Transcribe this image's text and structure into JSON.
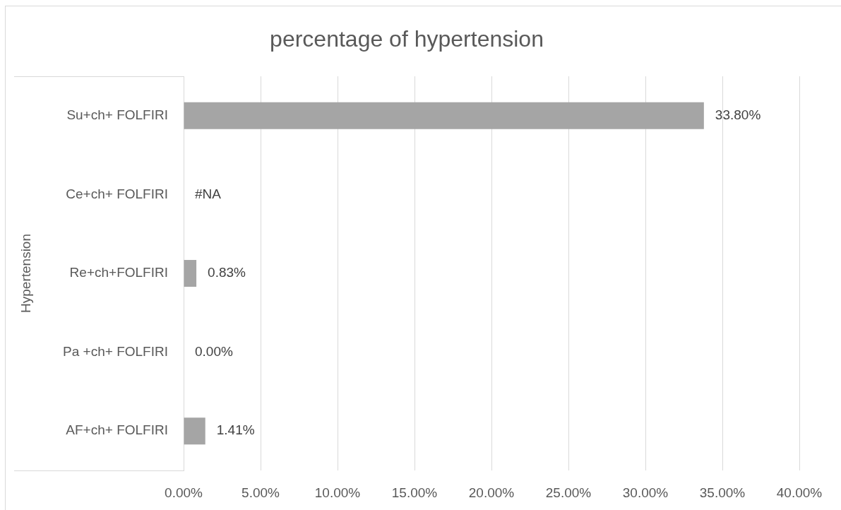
{
  "chart_data": {
    "type": "bar",
    "orientation": "horizontal",
    "title": "percentage of hypertension",
    "ylabel": "Hypertension",
    "categories": [
      "Su+ch+ FOLFIRI",
      "Ce+ch+ FOLFIRI",
      "Re+ch+FOLFIRI",
      "Pa +ch+ FOLFIRI",
      "AF+ch+ FOLFIRI"
    ],
    "values": [
      33.8,
      null,
      0.83,
      0,
      1.41
    ],
    "value_labels": [
      "33.80%",
      "#NA",
      "0.83%",
      "0.00%",
      "1.41%"
    ],
    "color": "#a5a5a5",
    "xlim": [
      0,
      40
    ],
    "xticks": [
      {
        "value": 0,
        "label": "0.00%"
      },
      {
        "value": 5,
        "label": "5.00%"
      },
      {
        "value": 10,
        "label": "10.00%"
      },
      {
        "value": 15,
        "label": "15.00%"
      },
      {
        "value": 20,
        "label": "20.00%"
      },
      {
        "value": 25,
        "label": "25.00%"
      },
      {
        "value": 30,
        "label": "30.00%"
      },
      {
        "value": 35,
        "label": "35.00%"
      },
      {
        "value": 40,
        "label": "40.00%"
      }
    ],
    "grid": "x"
  }
}
